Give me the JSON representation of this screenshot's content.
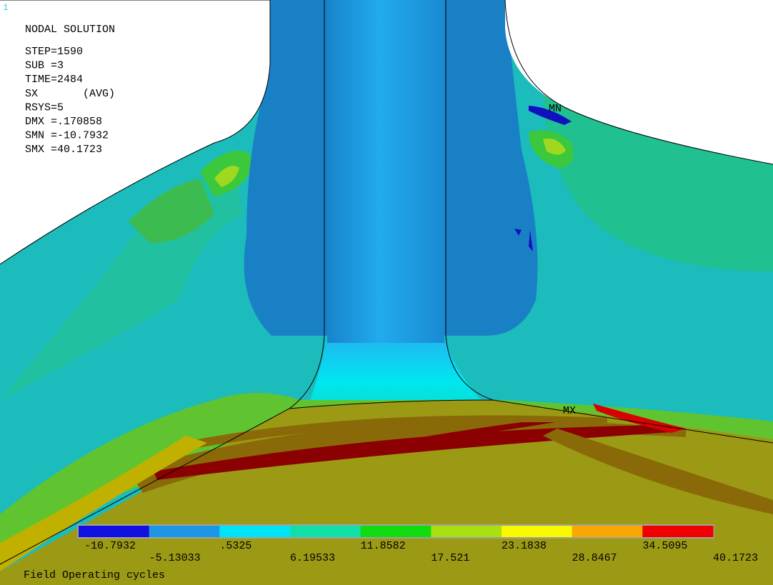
{
  "window_number": "1",
  "info": {
    "title": "NODAL SOLUTION",
    "lines": [
      "STEP=1590",
      "SUB =3",
      "TIME=2484",
      "SX       (AVG)",
      "RSYS=5",
      "DMX =.170858",
      "SMN =-10.7932",
      "SMX =40.1723"
    ]
  },
  "markers": {
    "min": "MN",
    "max": "MX"
  },
  "legend": {
    "colors": [
      "#1010e0",
      "#1e96e6",
      "#00e4f8",
      "#10e0a8",
      "#10dc10",
      "#a8e010",
      "#f8f800",
      "#f8a800",
      "#f00000"
    ],
    "labels": [
      "-10.7932",
      "-5.13033",
      ".5325",
      "6.19533",
      "11.8582",
      "17.521",
      "23.1838",
      "28.8467",
      "34.5095",
      "40.1723"
    ]
  },
  "caption": "Field Operating cycles"
}
